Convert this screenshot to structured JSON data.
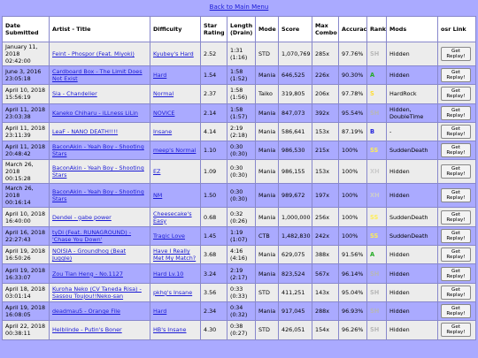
{
  "nav": {
    "back_label": "Back to Main Menu"
  },
  "headers": [
    "Date Submitted",
    "Artist - Title",
    "Difficulty",
    "Star Rating",
    "Length (Drain)",
    "Mode",
    "Score",
    "Max Combo",
    "Accuracy",
    "Rank",
    "Mods",
    "osr Link"
  ],
  "replay_label": "Get Replay!",
  "rank_colors": {
    "SH": "#b7b7b7",
    "A": "#22aa22",
    "S": "#ffdd33",
    "SS": "#ffee55",
    "XH": "#cccccc",
    "B": "#2222dd"
  },
  "rows": [
    {
      "date": "January 11, 2018 02:42:00",
      "title": "Feint - Phospor (Feat. Miyoki)",
      "diff": "Kyubey's Hard",
      "stars": "2.52",
      "len": "1:31 (1:16)",
      "mode": "STD",
      "score": "1,070,769",
      "combo": "285x",
      "acc": "97.76%",
      "rank": "SH",
      "mods": "Hidden"
    },
    {
      "date": "June 3, 2016 23:05:18",
      "title": "Cardboard Box - The Limit Does Not Exist",
      "diff": "Hard",
      "stars": "1.54",
      "len": "1:58 (1:52)",
      "mode": "Mania",
      "score": "646,525",
      "combo": "226x",
      "acc": "90.30%",
      "rank": "A",
      "mods": "Hidden"
    },
    {
      "date": "April 10, 2018 15:56:19",
      "title": "Sia - Chandelier",
      "diff": "Normal",
      "stars": "2.37",
      "len": "1:58 (1:56)",
      "mode": "Taiko",
      "score": "319,805",
      "combo": "206x",
      "acc": "97.78%",
      "rank": "S",
      "mods": "HardRock"
    },
    {
      "date": "April 11, 2018 23:03:38",
      "title": "Kaneko Chiharu - iLLness LiLin",
      "diff": "NOVICE",
      "stars": "2.14",
      "len": "1:58 (1:57)",
      "mode": "Mania",
      "score": "847,073",
      "combo": "392x",
      "acc": "95.54%",
      "rank": "SH",
      "mods": "Hidden, DoubleTime"
    },
    {
      "date": "April 11, 2018 23:11:39",
      "title": "LeaF - NANO DEATH!!!!",
      "diff": "Insane",
      "stars": "4.14",
      "len": "2:19 (2:18)",
      "mode": "Mania",
      "score": "586,641",
      "combo": "153x",
      "acc": "87.19%",
      "rank": "B",
      "mods": "-"
    },
    {
      "date": "April 11, 2018 20:48:42",
      "title": "BaconAkin - Yeah Boy - Shooting Stars",
      "diff": "meep's Normal",
      "stars": "1.10",
      "len": "0:30 (0:30)",
      "mode": "Mania",
      "score": "986,530",
      "combo": "215x",
      "acc": "100%",
      "rank": "SS",
      "mods": "SuddenDeath"
    },
    {
      "date": "March 26, 2018 00:15:28",
      "title": "BaconAkin - Yeah Boy - Shooting Stars",
      "diff": "EZ",
      "stars": "1.09",
      "len": "0:30 (0:30)",
      "mode": "Mania",
      "score": "986,155",
      "combo": "153x",
      "acc": "100%",
      "rank": "XH",
      "mods": "Hidden"
    },
    {
      "date": "March 26, 2018 00:16:14",
      "title": "BaconAkin - Yeah Boy - Shooting Stars",
      "diff": "NM",
      "stars": "1.50",
      "len": "0:30 (0:30)",
      "mode": "Mania",
      "score": "989,672",
      "combo": "197x",
      "acc": "100%",
      "rank": "XH",
      "mods": "Hidden"
    },
    {
      "date": "April 10, 2018 16:40:00",
      "title": "Dendei - gabe power",
      "diff": "Cheesecake's Easy",
      "stars": "0.68",
      "len": "0:32 (0:26)",
      "mode": "Mania",
      "score": "1,000,000",
      "combo": "256x",
      "acc": "100%",
      "rank": "SS",
      "mods": "SuddenDeath"
    },
    {
      "date": "April 16, 2018 22:27:43",
      "title": "tyDi (Feat. RUNAGROUND) - 'Chase You Down'",
      "diff": "Tragic Love",
      "stars": "1.45",
      "len": "1:19 (1:07)",
      "mode": "CTB",
      "score": "1,482,830",
      "combo": "242x",
      "acc": "100%",
      "rank": "SS",
      "mods": "SuddenDeath"
    },
    {
      "date": "April 19, 2018 16:50:26",
      "title": "NOISIA - Groundhog (Beat Juggle)",
      "diff": "Have I Really Met My Match?",
      "stars": "3.68",
      "len": "4:16 (4:16)",
      "mode": "Mania",
      "score": "629,075",
      "combo": "388x",
      "acc": "91.56%",
      "rank": "A",
      "mods": "Hidden"
    },
    {
      "date": "April 19, 2018 16:33:07",
      "title": "Zou Tian Heng - No.1127",
      "diff": "Hard Lv.10",
      "stars": "3.24",
      "len": "2:19 (2:17)",
      "mode": "Mania",
      "score": "823,524",
      "combo": "567x",
      "acc": "96.14%",
      "rank": "SH",
      "mods": "Hidden"
    },
    {
      "date": "April 18, 2018 03:01:14",
      "title": "Kuroha Neko (CV Taneda Risa) - Sassou Toujou!!Neko-san",
      "diff": "pkhg's Insane",
      "stars": "3.56",
      "len": "0:33 (0:33)",
      "mode": "STD",
      "score": "411,251",
      "combo": "143x",
      "acc": "95.04%",
      "rank": "SH",
      "mods": "Hidden"
    },
    {
      "date": "April 19, 2018 16:08:05",
      "title": "deadmau5 - Orange File",
      "diff": "Hard",
      "stars": "2.34",
      "len": "0:34 (0:32)",
      "mode": "Mania",
      "score": "917,045",
      "combo": "288x",
      "acc": "96.93%",
      "rank": "SH",
      "mods": "Hidden"
    },
    {
      "date": "April 22, 2018 00:38:11",
      "title": "Helblinde - Putin's Boner",
      "diff": "HB's Insane",
      "stars": "4.30",
      "len": "0:38 (0:27)",
      "mode": "STD",
      "score": "426,051",
      "combo": "154x",
      "acc": "96.26%",
      "rank": "SH",
      "mods": "Hidden"
    }
  ]
}
